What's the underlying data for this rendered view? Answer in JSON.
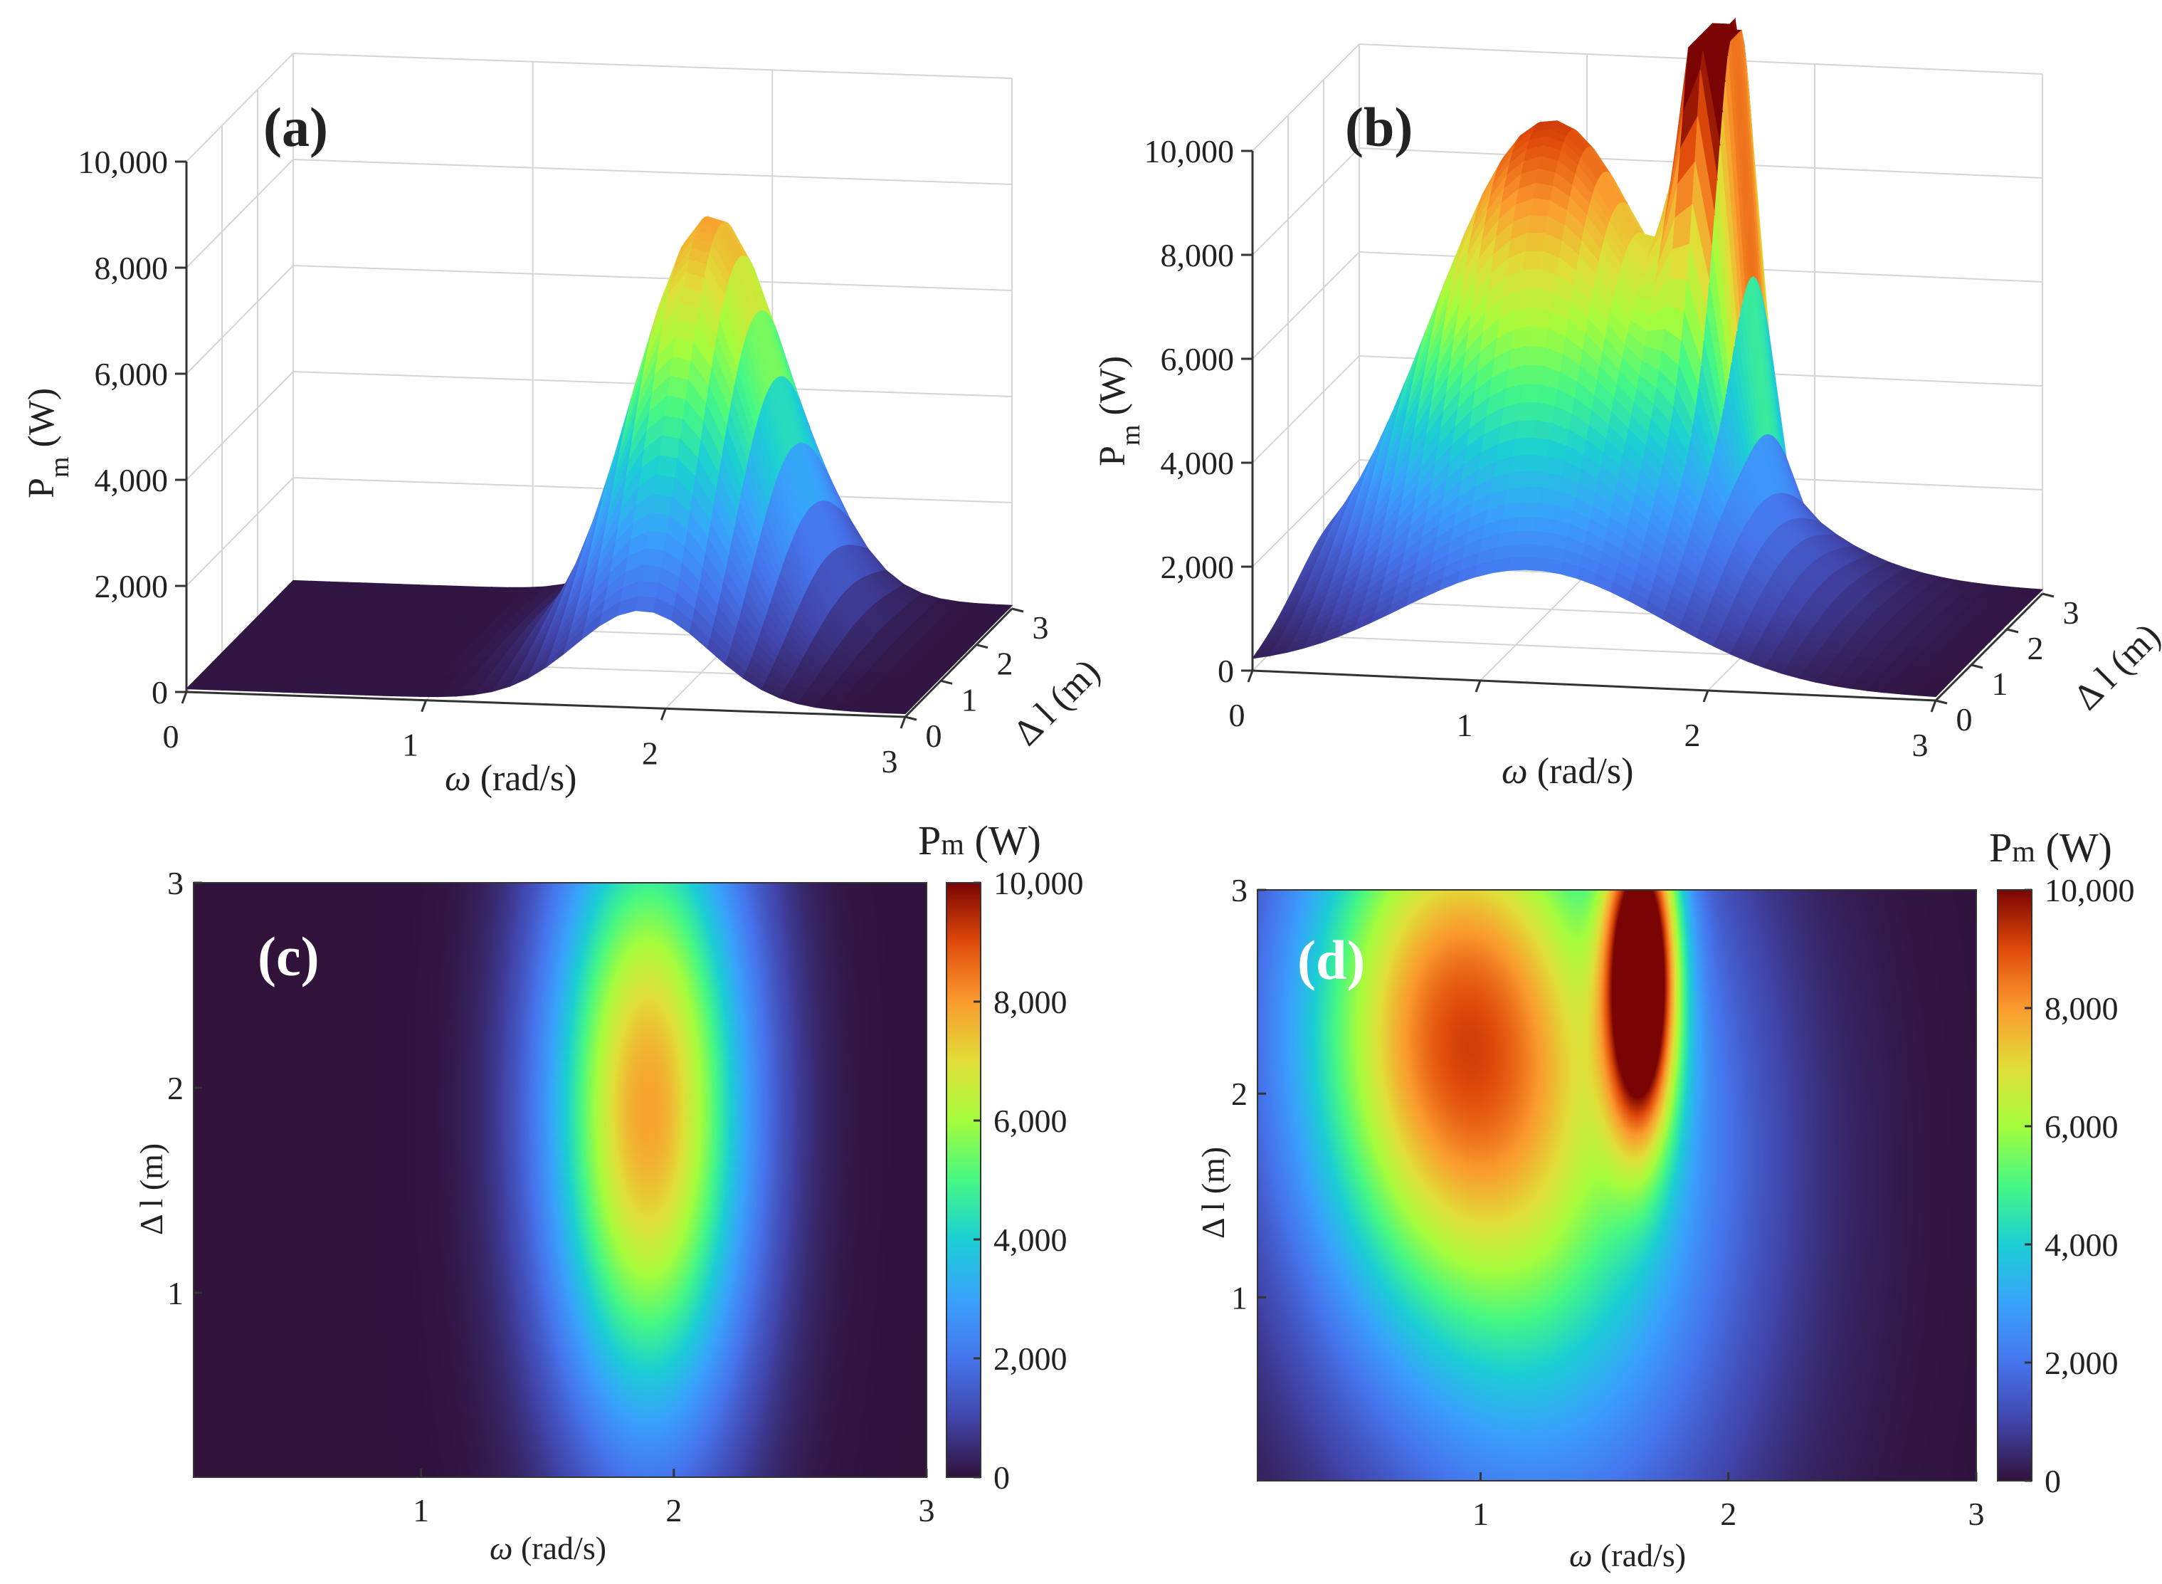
{
  "figure": {
    "colors": {
      "low": "#30123b",
      "mid_blue": "#3e9bfe",
      "green": "#46f884",
      "yellow": "#e1dd37",
      "orange": "#f66b19",
      "high": "#7a0403"
    }
  },
  "chart_data": [
    {
      "id": "a",
      "type": "surface3d",
      "panel_label": "(a)",
      "xlabel_sym": "ω",
      "xlabel_unit": " (rad/s)",
      "ylabel": "Δ l (m)",
      "zlabel_main": "P",
      "zlabel_sub": "m",
      "zlabel_unit": " (W)",
      "x_ticks": [
        "0",
        "1",
        "2",
        "3"
      ],
      "y_ticks": [
        "0",
        "1",
        "2",
        "3"
      ],
      "z_ticks": [
        "0",
        "2,000",
        "4,000",
        "6,000",
        "8,000",
        "10,000"
      ],
      "xlim": [
        0,
        3
      ],
      "ylim": [
        0,
        3
      ],
      "zlim": [
        0,
        10000
      ],
      "peaks": [
        {
          "x": 1.9,
          "y": 1.9,
          "amp": 7900,
          "sx": 0.28,
          "sy": 1.1
        }
      ]
    },
    {
      "id": "b",
      "type": "surface3d",
      "panel_label": "(b)",
      "xlabel_sym": "ω",
      "xlabel_unit": " (rad/s)",
      "ylabel": "Δ l (m)",
      "zlabel_main": "P",
      "zlabel_sub": "m",
      "zlabel_unit": " (W)",
      "x_ticks": [
        "0",
        "1",
        "2",
        "3"
      ],
      "y_ticks": [
        "0",
        "1",
        "2",
        "3"
      ],
      "z_ticks": [
        "0",
        "2,000",
        "4,000",
        "6,000",
        "8,000",
        "10,000"
      ],
      "xlim": [
        0,
        3
      ],
      "ylim": [
        0,
        3
      ],
      "zlim": [
        0,
        10000
      ],
      "peaks": [
        {
          "x": 1.65,
          "y": 2.6,
          "amp": 10500,
          "sx": 0.1,
          "sy": 0.55
        },
        {
          "x": 0.85,
          "y": 2.4,
          "amp": 6500,
          "sx": 0.45,
          "sy": 1.0
        },
        {
          "x": 1.3,
          "y": 1.6,
          "amp": 4000,
          "sx": 0.55,
          "sy": 1.3
        }
      ]
    },
    {
      "id": "c",
      "type": "heatmap",
      "panel_label": "(c)",
      "xlabel_sym": "ω",
      "xlabel_unit": " (rad/s)",
      "ylabel": "Δ l (m)",
      "colorbar_title_main": "P",
      "colorbar_title_sub": "m",
      "colorbar_title_unit": " (W)",
      "x_ticks": [
        "1",
        "2",
        "3"
      ],
      "x_tick_values": [
        1,
        2,
        3
      ],
      "y_ticks": [
        "1",
        "2",
        "3"
      ],
      "y_tick_values": [
        1,
        2,
        3
      ],
      "colorbar_ticks": [
        "0",
        "2,000",
        "4,000",
        "6,000",
        "8,000",
        "10,000"
      ],
      "colorbar_values": [
        0,
        2000,
        4000,
        6000,
        8000,
        10000
      ],
      "xlim": [
        0.1,
        3
      ],
      "ylim": [
        0.1,
        3
      ],
      "zlim": [
        0,
        10000
      ],
      "peaks": [
        {
          "x": 1.9,
          "y": 1.9,
          "amp": 7900,
          "sx": 0.28,
          "sy": 1.1
        }
      ]
    },
    {
      "id": "d",
      "type": "heatmap",
      "panel_label": "(d)",
      "xlabel_sym": "ω",
      "xlabel_unit": " (rad/s)",
      "ylabel": "Δ l (m)",
      "colorbar_title_main": "P",
      "colorbar_title_sub": "m",
      "colorbar_title_unit": " (W)",
      "x_ticks": [
        "1",
        "2",
        "3"
      ],
      "x_tick_values": [
        1,
        2,
        3
      ],
      "y_ticks": [
        "1",
        "2",
        "3"
      ],
      "y_tick_values": [
        1,
        2,
        3
      ],
      "colorbar_ticks": [
        "0",
        "2,000",
        "4,000",
        "6,000",
        "8,000",
        "10,000"
      ],
      "colorbar_values": [
        0,
        2000,
        4000,
        6000,
        8000,
        10000
      ],
      "xlim": [
        0.1,
        3
      ],
      "ylim": [
        0.1,
        3
      ],
      "zlim": [
        0,
        10000
      ],
      "peaks": [
        {
          "x": 1.65,
          "y": 2.6,
          "amp": 10500,
          "sx": 0.1,
          "sy": 0.55
        },
        {
          "x": 0.85,
          "y": 2.4,
          "amp": 6500,
          "sx": 0.45,
          "sy": 1.0
        },
        {
          "x": 1.3,
          "y": 1.6,
          "amp": 4000,
          "sx": 0.55,
          "sy": 1.3
        }
      ]
    }
  ]
}
